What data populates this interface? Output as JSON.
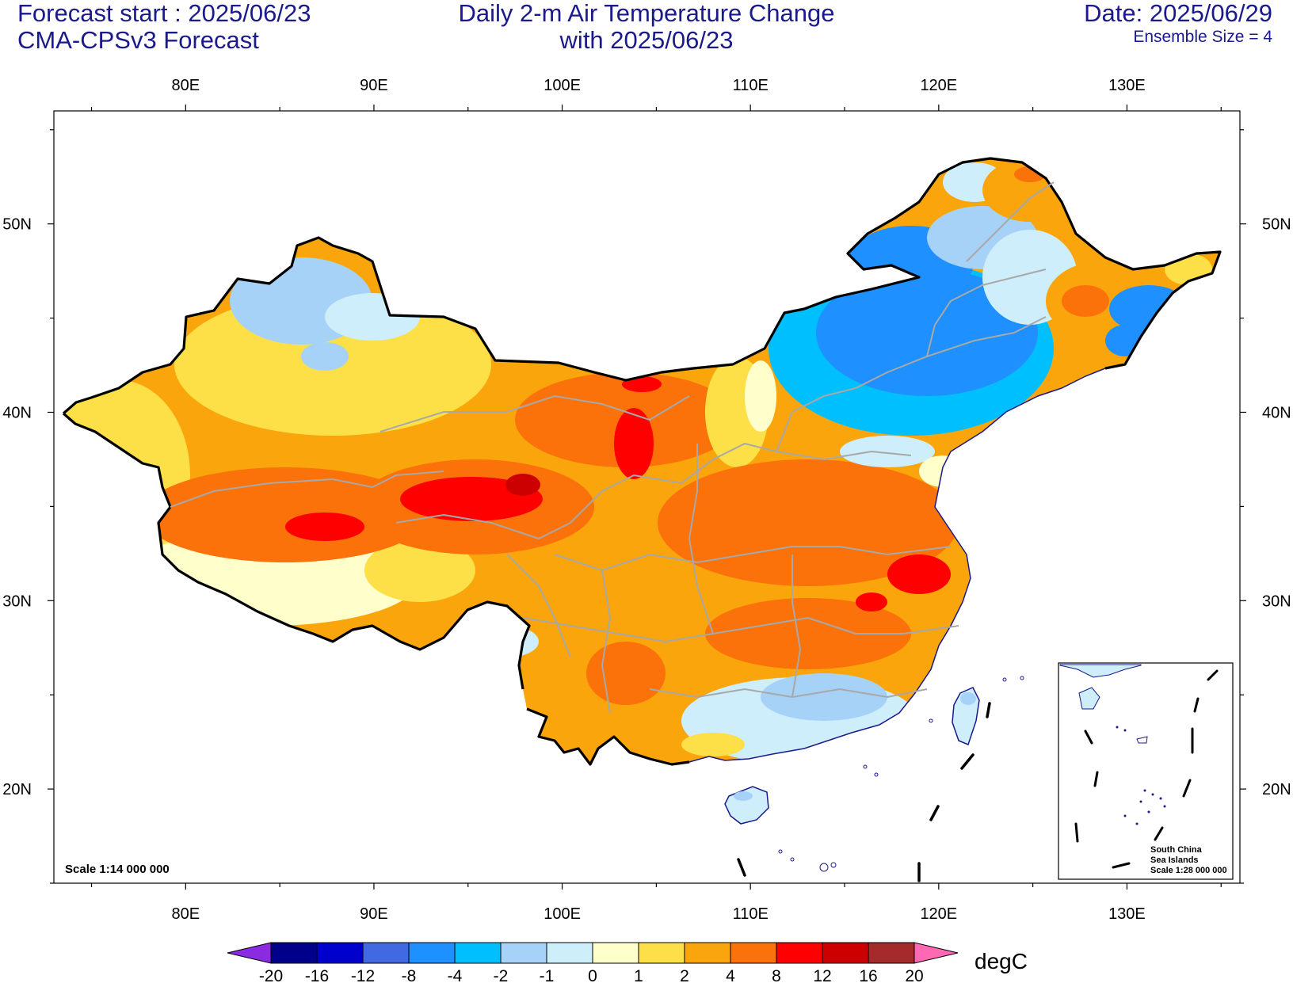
{
  "header": {
    "forecast_start": "Forecast start : 2025/06/23",
    "model": "CMA-CPSv3 Forecast",
    "title_line1": "Daily 2-m Air Temperature Change",
    "title_line2": "with 2025/06/23",
    "date": "Date: 2025/06/29",
    "ensemble": "Ensemble Size = 4"
  },
  "map": {
    "lon_range": [
      73,
      136
    ],
    "lat_range": [
      15,
      56
    ],
    "lon_ticks": [
      {
        "value": 80,
        "label": "80E"
      },
      {
        "value": 90,
        "label": "90E"
      },
      {
        "value": 100,
        "label": "100E"
      },
      {
        "value": 110,
        "label": "110E"
      },
      {
        "value": 120,
        "label": "120E"
      },
      {
        "value": 130,
        "label": "130E"
      }
    ],
    "lat_ticks": [
      {
        "value": 20,
        "label": "20N"
      },
      {
        "value": 30,
        "label": "30N"
      },
      {
        "value": 40,
        "label": "40N"
      },
      {
        "value": 50,
        "label": "50N"
      }
    ],
    "scale_text": "Scale 1:14 000 000",
    "inset": {
      "line1": "South China",
      "line2": "Sea Islands",
      "line3": "Scale 1:28 000 000"
    }
  },
  "colorbar": {
    "unit": "degC",
    "labels": [
      "-20",
      "-16",
      "-12",
      "-8",
      "-4",
      "-2",
      "-1",
      "0",
      "1",
      "2",
      "4",
      "8",
      "12",
      "16",
      "20"
    ],
    "colors": [
      "#8a2be2",
      "#00008b",
      "#0000cd",
      "#4169e1",
      "#1e90ff",
      "#00bfff",
      "#a6d2f7",
      "#cdeefa",
      "#ffffcc",
      "#fde047",
      "#faa50c",
      "#fa7209",
      "#fe0000",
      "#cc0000",
      "#a52a2a",
      "#ff69b4"
    ],
    "triangle_low": "#8a2be2",
    "triangle_high": "#ff69b4"
  }
}
